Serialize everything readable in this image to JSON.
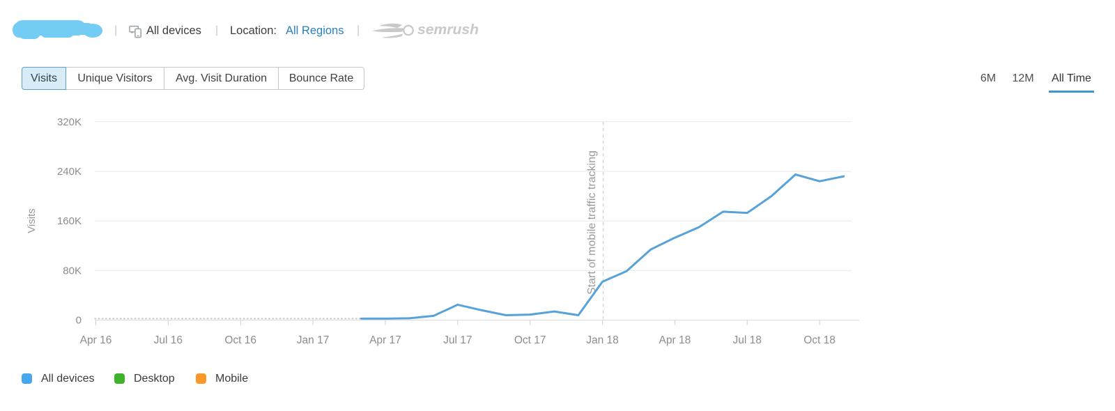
{
  "header": {
    "separator": "|",
    "device_scope": "All devices",
    "location_label": "Location:",
    "location_value": "All Regions",
    "brand": "semrush",
    "redaction_color": "#72ccf3"
  },
  "metric_tabs": {
    "items": [
      {
        "label": "Visits",
        "selected": true
      },
      {
        "label": "Unique Visitors",
        "selected": false
      },
      {
        "label": "Avg. Visit Duration",
        "selected": false
      },
      {
        "label": "Bounce Rate",
        "selected": false
      }
    ]
  },
  "period_switcher": {
    "items": [
      {
        "label": "6M",
        "selected": false
      },
      {
        "label": "12M",
        "selected": false
      },
      {
        "label": "All Time",
        "selected": true
      }
    ],
    "underline_color": "#3d95d6"
  },
  "chart_data": {
    "type": "line",
    "title": "",
    "xlabel": "",
    "ylabel": "Visits",
    "ylim": [
      0,
      320000
    ],
    "y_ticks": [
      0,
      80000,
      160000,
      240000,
      320000
    ],
    "y_tick_labels": [
      "0",
      "80K",
      "160K",
      "240K",
      "320K"
    ],
    "x_tick_labels": [
      "Apr 16",
      "Jul 16",
      "Oct 16",
      "Jan 17",
      "Apr 17",
      "Jul 17",
      "Oct 17",
      "Jan 18",
      "Apr 18",
      "Jul 18",
      "Oct 18"
    ],
    "grid": true,
    "legend_position": "bottom-left",
    "no_data_span": {
      "from": "Apr 16",
      "to": "Mar 17",
      "value": 0
    },
    "annotation": {
      "text": "Start of mobile traffic tracking",
      "at": "Jan 18"
    },
    "series": [
      {
        "name": "All devices",
        "color": "#57a2d9",
        "x": [
          "Mar 17",
          "Apr 17",
          "May 17",
          "Jun 17",
          "Jul 17",
          "Aug 17",
          "Sep 17",
          "Oct 17",
          "Nov 17",
          "Dec 17",
          "Jan 18",
          "Feb 18",
          "Mar 18",
          "Apr 18",
          "May 18",
          "Jun 18",
          "Jul 18",
          "Aug 18",
          "Sep 18",
          "Oct 18",
          "Nov 18"
        ],
        "values": [
          2500,
          2500,
          3000,
          7000,
          25000,
          16000,
          8000,
          9000,
          14000,
          8000,
          62000,
          79000,
          114000,
          133000,
          150000,
          175000,
          173000,
          200000,
          235000,
          224000,
          232000
        ]
      }
    ],
    "legend": [
      {
        "label": "All devices",
        "color": "#47a7ee"
      },
      {
        "label": "Desktop",
        "color": "#3eb22a"
      },
      {
        "label": "Mobile",
        "color": "#f8992c"
      }
    ]
  }
}
